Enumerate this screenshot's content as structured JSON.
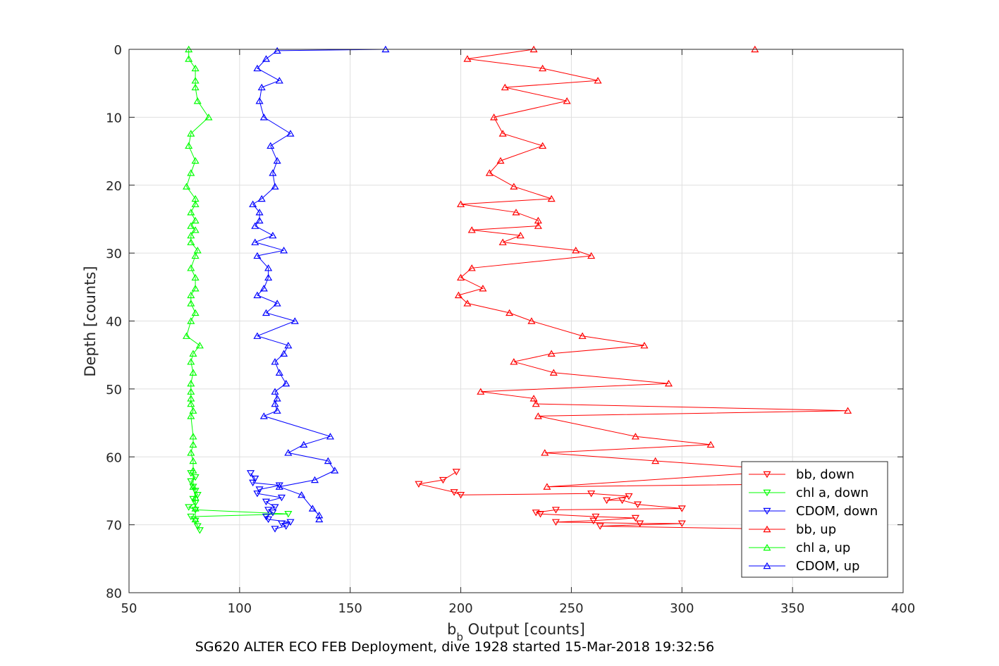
{
  "chart_data": {
    "type": "line",
    "title": "",
    "xlabel": "b_b Output [counts]",
    "xlabel_main": "b",
    "xlabel_sub": "b",
    "xlabel_rest": " Output [counts]",
    "ylabel": "Depth [counts]",
    "caption": "SG620 ALTER ECO FEB Deployment, dive 1928 started 15-Mar-2018 19:32:56",
    "xlim": [
      50,
      400
    ],
    "ylim": [
      0,
      80
    ],
    "y_reversed": true,
    "grid": true,
    "legend_position": "bottom-right",
    "xticks": [
      "50",
      "100",
      "150",
      "200",
      "250",
      "300",
      "350",
      "400"
    ],
    "yticks": [
      "0",
      "10",
      "20",
      "30",
      "40",
      "50",
      "60",
      "70",
      "80"
    ],
    "series": [
      {
        "name": "bb, down",
        "color": "#ff0000",
        "marker": "triangle-down",
        "points": [
          [
            198,
            62.2
          ],
          [
            192,
            63.4
          ],
          [
            181,
            64.0
          ],
          [
            197,
            65.2
          ],
          [
            200,
            65.6
          ],
          [
            259,
            65.4
          ],
          [
            276,
            65.8
          ],
          [
            266,
            66.4
          ],
          [
            273,
            66.4
          ],
          [
            280,
            67.0
          ],
          [
            300,
            67.6
          ],
          [
            243,
            67.8
          ],
          [
            234,
            68.2
          ],
          [
            236,
            68.4
          ],
          [
            261,
            68.8
          ],
          [
            279,
            69.0
          ],
          [
            260,
            69.4
          ],
          [
            243,
            69.6
          ],
          [
            281,
            69.8
          ],
          [
            300,
            69.8
          ],
          [
            263,
            70.2
          ],
          [
            335,
            70.6
          ]
        ]
      },
      {
        "name": "chl a, down",
        "color": "#00ff00",
        "marker": "triangle-down",
        "points": [
          [
            78,
            62.4
          ],
          [
            80,
            63.0
          ],
          [
            78,
            63.6
          ],
          [
            79,
            64.4
          ],
          [
            80,
            65.0
          ],
          [
            81,
            65.6
          ],
          [
            79,
            66.2
          ],
          [
            80,
            66.8
          ],
          [
            77,
            67.4
          ],
          [
            80,
            67.8
          ],
          [
            122,
            68.4
          ],
          [
            78,
            68.8
          ],
          [
            80,
            69.4
          ],
          [
            81,
            70.2
          ],
          [
            82,
            70.8
          ]
        ]
      },
      {
        "name": "CDOM, down",
        "color": "#0000ff",
        "marker": "triangle-down",
        "points": [
          [
            105,
            62.4
          ],
          [
            107,
            63.2
          ],
          [
            106,
            63.8
          ],
          [
            118,
            64.2
          ],
          [
            109,
            64.8
          ],
          [
            108,
            65.4
          ],
          [
            119,
            66.0
          ],
          [
            112,
            66.6
          ],
          [
            116,
            67.4
          ],
          [
            113,
            67.8
          ],
          [
            115,
            68.2
          ],
          [
            112,
            68.8
          ],
          [
            113,
            69.2
          ],
          [
            123,
            69.6
          ],
          [
            119,
            69.8
          ],
          [
            121,
            70.2
          ],
          [
            116,
            70.6
          ]
        ]
      },
      {
        "name": "bb, up",
        "color": "#ff0000",
        "marker": "triangle-up",
        "points": [
          [
            333,
            0.0
          ],
          [
            233,
            0.0
          ],
          [
            203,
            1.4
          ],
          [
            237,
            2.8
          ],
          [
            262,
            4.6
          ],
          [
            220,
            5.6
          ],
          [
            248,
            7.6
          ],
          [
            215,
            10.0
          ],
          [
            219,
            12.4
          ],
          [
            237,
            14.2
          ],
          [
            218,
            16.4
          ],
          [
            213,
            18.2
          ],
          [
            224,
            20.2
          ],
          [
            241,
            22.0
          ],
          [
            200,
            22.8
          ],
          [
            225,
            24.0
          ],
          [
            235,
            25.2
          ],
          [
            235,
            26.0
          ],
          [
            205,
            26.6
          ],
          [
            227,
            27.4
          ],
          [
            219,
            28.4
          ],
          [
            252,
            29.6
          ],
          [
            259,
            30.4
          ],
          [
            205,
            32.2
          ],
          [
            200,
            33.6
          ],
          [
            210,
            35.2
          ],
          [
            199,
            36.2
          ],
          [
            203,
            37.4
          ],
          [
            222,
            38.8
          ],
          [
            232,
            40.0
          ],
          [
            255,
            42.2
          ],
          [
            283,
            43.6
          ],
          [
            241,
            44.8
          ],
          [
            224,
            46.0
          ],
          [
            242,
            47.6
          ],
          [
            294,
            49.2
          ],
          [
            209,
            50.4
          ],
          [
            233,
            51.4
          ],
          [
            234,
            52.2
          ],
          [
            375,
            53.2
          ],
          [
            235,
            54.0
          ],
          [
            279,
            57.0
          ],
          [
            313,
            58.2
          ],
          [
            238,
            59.4
          ],
          [
            288,
            60.6
          ],
          [
            350,
            62.0
          ],
          [
            239,
            64.4
          ],
          [
            350,
            64.0
          ]
        ]
      },
      {
        "name": "chl a, up",
        "color": "#00ff00",
        "marker": "triangle-up",
        "points": [
          [
            77,
            0.0
          ],
          [
            77,
            1.4
          ],
          [
            80,
            2.8
          ],
          [
            80,
            4.6
          ],
          [
            80,
            5.6
          ],
          [
            81,
            7.6
          ],
          [
            86,
            10.0
          ],
          [
            78,
            12.4
          ],
          [
            77,
            14.2
          ],
          [
            80,
            16.4
          ],
          [
            78,
            18.2
          ],
          [
            76,
            20.2
          ],
          [
            80,
            22.0
          ],
          [
            80,
            22.8
          ],
          [
            78,
            24.0
          ],
          [
            80,
            25.2
          ],
          [
            78,
            26.0
          ],
          [
            80,
            26.6
          ],
          [
            78,
            27.4
          ],
          [
            78,
            28.4
          ],
          [
            81,
            29.6
          ],
          [
            80,
            30.4
          ],
          [
            78,
            32.2
          ],
          [
            80,
            33.6
          ],
          [
            80,
            35.2
          ],
          [
            78,
            36.2
          ],
          [
            78,
            37.4
          ],
          [
            80,
            38.8
          ],
          [
            78,
            40.0
          ],
          [
            76,
            42.2
          ],
          [
            82,
            43.6
          ],
          [
            79,
            44.8
          ],
          [
            78,
            46.0
          ],
          [
            79,
            47.6
          ],
          [
            78,
            49.2
          ],
          [
            78,
            50.4
          ],
          [
            78,
            51.4
          ],
          [
            78,
            52.2
          ],
          [
            79,
            53.2
          ],
          [
            78,
            54.0
          ],
          [
            79,
            57.0
          ],
          [
            79,
            58.2
          ],
          [
            78,
            59.4
          ],
          [
            79,
            60.6
          ],
          [
            79,
            62.0
          ],
          [
            79,
            64.4
          ],
          [
            80,
            66.0
          ],
          [
            80,
            67.6
          ],
          [
            80,
            69.2
          ]
        ]
      },
      {
        "name": "CDOM, up",
        "color": "#0000ff",
        "marker": "triangle-up",
        "points": [
          [
            166,
            0.0
          ],
          [
            117,
            0.2
          ],
          [
            112,
            1.4
          ],
          [
            108,
            2.8
          ],
          [
            118,
            4.6
          ],
          [
            110,
            5.6
          ],
          [
            109,
            7.6
          ],
          [
            111,
            10.0
          ],
          [
            123,
            12.4
          ],
          [
            114,
            14.2
          ],
          [
            117,
            16.4
          ],
          [
            115,
            18.2
          ],
          [
            116,
            20.2
          ],
          [
            110,
            22.0
          ],
          [
            106,
            22.8
          ],
          [
            109,
            24.0
          ],
          [
            109,
            25.2
          ],
          [
            107,
            26.0
          ],
          [
            115,
            27.4
          ],
          [
            107,
            28.4
          ],
          [
            120,
            29.6
          ],
          [
            108,
            30.4
          ],
          [
            113,
            32.2
          ],
          [
            113,
            33.6
          ],
          [
            111,
            35.2
          ],
          [
            108,
            36.2
          ],
          [
            117,
            37.4
          ],
          [
            112,
            38.8
          ],
          [
            125,
            40.0
          ],
          [
            108,
            42.2
          ],
          [
            122,
            43.6
          ],
          [
            120,
            44.8
          ],
          [
            116,
            46.0
          ],
          [
            118,
            47.6
          ],
          [
            121,
            49.2
          ],
          [
            116,
            50.4
          ],
          [
            117,
            51.4
          ],
          [
            116,
            52.2
          ],
          [
            117,
            53.2
          ],
          [
            111,
            54.0
          ],
          [
            141,
            57.0
          ],
          [
            129,
            58.2
          ],
          [
            122,
            59.4
          ],
          [
            140,
            60.6
          ],
          [
            143,
            62.0
          ],
          [
            134,
            63.4
          ],
          [
            118,
            64.4
          ],
          [
            128,
            65.6
          ],
          [
            133,
            67.6
          ],
          [
            136,
            68.6
          ],
          [
            136,
            69.2
          ]
        ]
      }
    ]
  }
}
